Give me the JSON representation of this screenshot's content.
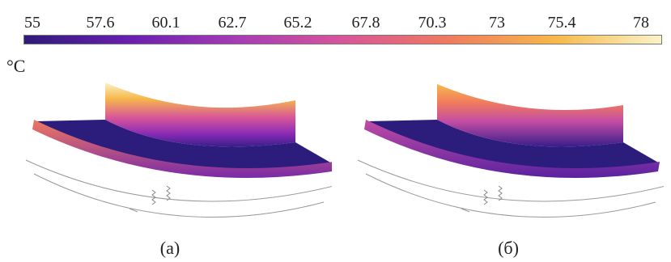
{
  "colorbar": {
    "unit": "°C",
    "ticks": [
      "55",
      "57.6",
      "60.1",
      "62.7",
      "65.2",
      "67.8",
      "70.3",
      "73",
      "75.4",
      "78"
    ],
    "min": 55,
    "max": 78,
    "colors": [
      "#2e1a7a",
      "#6a1fb0",
      "#a63bb5",
      "#d7559a",
      "#f07a5e",
      "#f7b84a",
      "#faf3c8"
    ]
  },
  "panels": [
    {
      "caption": "(a)"
    },
    {
      "caption": "(б)"
    }
  ]
}
